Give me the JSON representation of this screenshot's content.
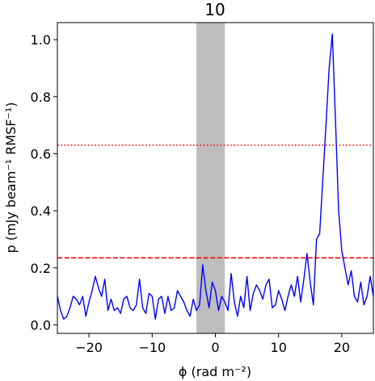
{
  "chart_data": {
    "type": "line",
    "title": "10",
    "xlabel": "ϕ (rad m⁻²)",
    "ylabel": "p (mJy beam⁻¹ RMSF⁻¹)",
    "xlim": [
      -25,
      25
    ],
    "ylim": [
      -0.03,
      1.06
    ],
    "xticks": [
      -20,
      -10,
      0,
      10,
      20
    ],
    "xtick_labels": [
      "−20",
      "−10",
      "0",
      "10",
      "20"
    ],
    "yticks": [
      0.0,
      0.2,
      0.4,
      0.6,
      0.8,
      1.0
    ],
    "ytick_labels": [
      "0.0",
      "0.2",
      "0.4",
      "0.6",
      "0.8",
      "1.0"
    ],
    "grid": false,
    "shaded_region": {
      "x_start": -3.0,
      "x_end": 1.5,
      "color": "#bebebe"
    },
    "threshold_lines": [
      {
        "y": 0.63,
        "style": "dotted",
        "color": "#ff0000"
      },
      {
        "y": 0.235,
        "style": "dashed",
        "color": "#ff0000"
      }
    ],
    "series": [
      {
        "color": "#0000ff",
        "x": [
          -25.0,
          -24.5,
          -24.0,
          -23.5,
          -23.0,
          -22.5,
          -22.0,
          -21.5,
          -21.0,
          -20.5,
          -20.0,
          -19.5,
          -19.0,
          -18.5,
          -18.0,
          -17.5,
          -17.0,
          -16.5,
          -16.0,
          -15.5,
          -15.0,
          -14.5,
          -14.0,
          -13.5,
          -13.0,
          -12.5,
          -12.0,
          -11.5,
          -11.0,
          -10.5,
          -10.0,
          -9.5,
          -9.0,
          -8.5,
          -8.0,
          -7.5,
          -7.0,
          -6.5,
          -6.0,
          -5.5,
          -5.0,
          -4.5,
          -4.0,
          -3.5,
          -3.0,
          -2.5,
          -2.0,
          -1.5,
          -1.0,
          -0.5,
          0.0,
          0.5,
          1.0,
          1.5,
          2.0,
          2.5,
          3.0,
          3.5,
          4.0,
          4.5,
          5.0,
          5.5,
          6.0,
          6.5,
          7.0,
          7.5,
          8.0,
          8.5,
          9.0,
          9.5,
          10.0,
          10.5,
          11.0,
          11.5,
          12.0,
          12.5,
          13.0,
          13.5,
          14.0,
          14.5,
          15.0,
          15.5,
          16.0,
          16.5,
          17.0,
          17.5,
          18.0,
          18.5,
          19.0,
          19.5,
          20.0,
          20.5,
          21.0,
          21.5,
          22.0,
          22.5,
          23.0,
          23.5,
          24.0,
          24.5,
          25.0
        ],
        "y": [
          0.1,
          0.05,
          0.02,
          0.03,
          0.06,
          0.1,
          0.09,
          0.07,
          0.1,
          0.03,
          0.08,
          0.12,
          0.17,
          0.13,
          0.1,
          0.16,
          0.05,
          0.09,
          0.05,
          0.06,
          0.04,
          0.09,
          0.1,
          0.06,
          0.05,
          0.07,
          0.16,
          0.06,
          0.04,
          0.11,
          0.1,
          0.02,
          0.09,
          0.1,
          0.04,
          0.1,
          0.05,
          0.06,
          0.12,
          0.1,
          0.08,
          0.05,
          0.03,
          0.09,
          0.05,
          0.07,
          0.21,
          0.12,
          0.06,
          0.15,
          0.12,
          0.05,
          0.1,
          0.08,
          0.05,
          0.18,
          0.08,
          0.03,
          0.1,
          0.06,
          0.17,
          0.05,
          0.11,
          0.14,
          0.12,
          0.09,
          0.14,
          0.16,
          0.06,
          0.07,
          0.12,
          0.09,
          0.05,
          0.1,
          0.14,
          0.1,
          0.17,
          0.08,
          0.16,
          0.25,
          0.15,
          0.07,
          0.3,
          0.32,
          0.51,
          0.7,
          0.9,
          1.02,
          0.72,
          0.4,
          0.26,
          0.2,
          0.14,
          0.19,
          0.1,
          0.08,
          0.15,
          0.07,
          0.1,
          0.17,
          0.1
        ]
      }
    ]
  }
}
